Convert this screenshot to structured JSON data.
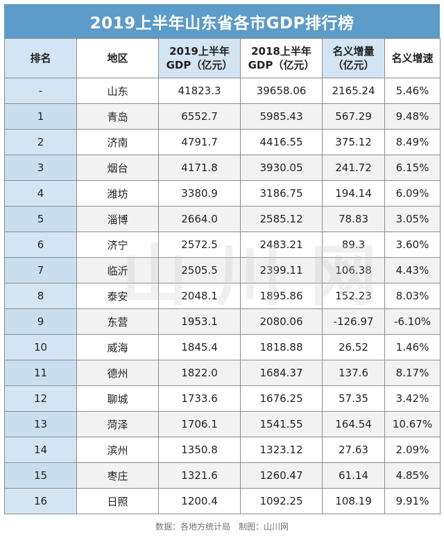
{
  "title": "2019上半年山东省各市GDP排行榜",
  "headers": {
    "rank": "排名",
    "region": "地区",
    "gdp2019_line1": "2019上半年",
    "gdp2019_line2": "GDP（亿元）",
    "gdp2018_line1": "2018上半年",
    "gdp2018_line2": "GDP（亿元）",
    "increase_line1": "名义增量",
    "increase_line2": "（亿元）",
    "growth": "名义增速"
  },
  "rows": [
    {
      "rank": "-",
      "region": "山东",
      "gdp2019": "41823.3",
      "gdp2018": "39658.06",
      "increase": "2165.24",
      "growth": "5.46%"
    },
    {
      "rank": "1",
      "region": "青岛",
      "gdp2019": "6552.7",
      "gdp2018": "5985.43",
      "increase": "567.29",
      "growth": "9.48%"
    },
    {
      "rank": "2",
      "region": "济南",
      "gdp2019": "4791.7",
      "gdp2018": "4416.55",
      "increase": "375.12",
      "growth": "8.49%"
    },
    {
      "rank": "3",
      "region": "烟台",
      "gdp2019": "4171.8",
      "gdp2018": "3930.05",
      "increase": "241.72",
      "growth": "6.15%"
    },
    {
      "rank": "4",
      "region": "潍坊",
      "gdp2019": "3380.9",
      "gdp2018": "3186.75",
      "increase": "194.14",
      "growth": "6.09%"
    },
    {
      "rank": "5",
      "region": "淄博",
      "gdp2019": "2664.0",
      "gdp2018": "2585.12",
      "increase": "78.83",
      "growth": "3.05%"
    },
    {
      "rank": "6",
      "region": "济宁",
      "gdp2019": "2572.5",
      "gdp2018": "2483.21",
      "increase": "89.3",
      "growth": "3.60%"
    },
    {
      "rank": "7",
      "region": "临沂",
      "gdp2019": "2505.5",
      "gdp2018": "2399.11",
      "increase": "106.38",
      "growth": "4.43%"
    },
    {
      "rank": "8",
      "region": "泰安",
      "gdp2019": "2048.1",
      "gdp2018": "1895.86",
      "increase": "152.23",
      "growth": "8.03%"
    },
    {
      "rank": "9",
      "region": "东营",
      "gdp2019": "1953.1",
      "gdp2018": "2080.06",
      "increase": "-126.97",
      "growth": "-6.10%"
    },
    {
      "rank": "10",
      "region": "威海",
      "gdp2019": "1845.4",
      "gdp2018": "1818.88",
      "increase": "26.52",
      "growth": "1.46%"
    },
    {
      "rank": "11",
      "region": "德州",
      "gdp2019": "1822.0",
      "gdp2018": "1684.37",
      "increase": "137.6",
      "growth": "8.17%"
    },
    {
      "rank": "12",
      "region": "聊城",
      "gdp2019": "1733.6",
      "gdp2018": "1676.25",
      "increase": "57.35",
      "growth": "3.42%"
    },
    {
      "rank": "13",
      "region": "菏泽",
      "gdp2019": "1706.1",
      "gdp2018": "1541.55",
      "increase": "164.54",
      "growth": "10.67%"
    },
    {
      "rank": "14",
      "region": "滨州",
      "gdp2019": "1350.8",
      "gdp2018": "1323.12",
      "increase": "27.63",
      "growth": "2.09%"
    },
    {
      "rank": "15",
      "region": "枣庄",
      "gdp2019": "1321.6",
      "gdp2018": "1260.47",
      "increase": "61.14",
      "growth": "4.85%"
    },
    {
      "rank": "16",
      "region": "日照",
      "gdp2019": "1200.4",
      "gdp2018": "1092.25",
      "increase": "108.19",
      "growth": "9.91%"
    }
  ],
  "footer": {
    "source": "数据：各地方统计局",
    "credit": "制图：山川网"
  },
  "watermark": "山川网",
  "colors": {
    "title_bg": "#5d9bc8",
    "header_bg": "#d3e5f3",
    "alt_row_bg": "#f2f2f2",
    "border": "#8c8c8c"
  }
}
